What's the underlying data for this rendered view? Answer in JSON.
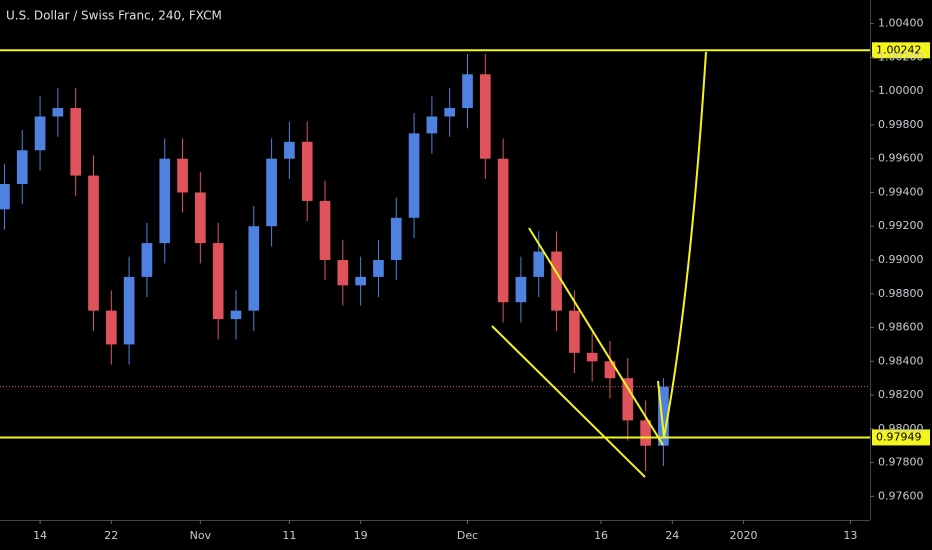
{
  "chart_data": {
    "type": "candlestick",
    "title": "U.S. Dollar / Swiss Franc, 240, FXCM",
    "x": [
      9,
      11,
      13,
      15,
      17,
      19,
      21,
      23,
      25,
      27,
      29,
      31,
      33,
      35,
      37,
      39,
      41,
      43,
      45,
      47,
      49,
      51,
      53,
      55,
      57,
      59,
      61,
      63,
      65,
      67,
      69,
      71,
      73,
      75,
      77,
      79,
      81,
      83
    ],
    "open": [
      0.993,
      0.9945,
      0.9965,
      0.9985,
      0.999,
      0.995,
      0.987,
      0.985,
      0.989,
      0.991,
      0.996,
      0.994,
      0.991,
      0.9865,
      0.987,
      0.992,
      0.996,
      0.997,
      0.9935,
      0.99,
      0.9885,
      0.989,
      0.99,
      0.9925,
      0.9975,
      0.9985,
      0.999,
      1.001,
      0.996,
      0.9875,
      0.989,
      0.9905,
      0.987,
      0.9845,
      0.984,
      0.983,
      0.9805,
      0.979
    ],
    "high": [
      0.9957,
      0.9977,
      0.9997,
      1.0002,
      1.0002,
      0.9962,
      0.9882,
      0.9902,
      0.9922,
      0.9972,
      0.9972,
      0.9952,
      0.9922,
      0.9882,
      0.9932,
      0.9972,
      0.9982,
      0.9982,
      0.9947,
      0.9912,
      0.9902,
      0.9912,
      0.9937,
      0.9987,
      0.9997,
      1.0002,
      1.0022,
      1.0022,
      0.9972,
      0.9902,
      0.9917,
      0.9917,
      0.9882,
      0.9857,
      0.9852,
      0.9842,
      0.9817,
      0.983
    ],
    "low": [
      0.9918,
      0.9933,
      0.9953,
      0.9973,
      0.9938,
      0.9858,
      0.9838,
      0.9838,
      0.9878,
      0.9898,
      0.9928,
      0.9898,
      0.9853,
      0.9853,
      0.9858,
      0.9908,
      0.9948,
      0.9923,
      0.9888,
      0.9873,
      0.9873,
      0.9878,
      0.9888,
      0.9913,
      0.9963,
      0.9973,
      0.9978,
      0.9948,
      0.9863,
      0.9863,
      0.9878,
      0.9858,
      0.9833,
      0.9828,
      0.9818,
      0.9793,
      0.9775,
      0.9778
    ],
    "close": [
      0.9945,
      0.9965,
      0.9985,
      0.999,
      0.995,
      0.987,
      0.985,
      0.989,
      0.991,
      0.996,
      0.994,
      0.991,
      0.9865,
      0.987,
      0.992,
      0.996,
      0.997,
      0.9935,
      0.99,
      0.9885,
      0.989,
      0.99,
      0.9925,
      0.9975,
      0.9985,
      0.999,
      1.001,
      0.996,
      0.9875,
      0.989,
      0.9905,
      0.987,
      0.9845,
      0.984,
      0.983,
      0.9805,
      0.979,
      0.9825
    ],
    "up_color": "#4f82e0",
    "down_color": "#e0525c",
    "xlim": [
      8.5,
      106.2
    ],
    "ylim": [
      0.9746,
      1.0054
    ],
    "xticks": [
      {
        "value": 13,
        "label": "14"
      },
      {
        "value": 21,
        "label": "22"
      },
      {
        "value": 31,
        "label": "Nov"
      },
      {
        "value": 41,
        "label": "11"
      },
      {
        "value": 49,
        "label": "19"
      },
      {
        "value": 61,
        "label": "Dec"
      },
      {
        "value": 76,
        "label": "16"
      },
      {
        "value": 84,
        "label": "24"
      },
      {
        "value": 92,
        "label": "2020"
      },
      {
        "value": 104,
        "label": "13"
      }
    ],
    "yticks": [
      {
        "value": 1.004,
        "label": "1.00400"
      },
      {
        "value": 1.002,
        "label": "1.00200"
      },
      {
        "value": 1.0,
        "label": "1.00000"
      },
      {
        "value": 0.998,
        "label": "0.99800"
      },
      {
        "value": 0.996,
        "label": "0.99600"
      },
      {
        "value": 0.994,
        "label": "0.99400"
      },
      {
        "value": 0.992,
        "label": "0.99200"
      },
      {
        "value": 0.99,
        "label": "0.99000"
      },
      {
        "value": 0.988,
        "label": "0.98800"
      },
      {
        "value": 0.986,
        "label": "0.98600"
      },
      {
        "value": 0.984,
        "label": "0.98400"
      },
      {
        "value": 0.982,
        "label": "0.98200"
      },
      {
        "value": 0.98,
        "label": "0.98000"
      },
      {
        "value": 0.978,
        "label": "0.97800"
      },
      {
        "value": 0.976,
        "label": "0.97600"
      }
    ],
    "levels": [
      {
        "value": 1.00242,
        "label": "1.00242",
        "color": "#f5f51e"
      },
      {
        "value": 0.97949,
        "label": "0.97949",
        "color": "#f5f51e"
      }
    ],
    "current_price": 0.9825,
    "grid": false
  }
}
